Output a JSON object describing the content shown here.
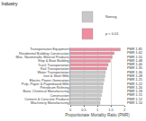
{
  "chart_data": {
    "type": "bar",
    "orientation": "horizontal",
    "title": "Industry",
    "x_label": "Proportionate Mortality Ratio (PMR)",
    "categories": [
      "Transportation Equipment",
      "Residential Building Construction",
      "Misc. Nonmetallic Mineral Products",
      "Ship & Boat Building",
      "Truck Transportation",
      "Rail Transportation",
      "Water Transportation",
      "Iron & Steel Mills",
      "Electric Power Generation",
      "Pulp, Paper & Paperboard Mills",
      "Petroleum Refining",
      "Basic Chemical Manufacturing",
      "Construction",
      "Cement & Concrete Products",
      "Machinery Manufacturing"
    ],
    "series": [
      {
        "name": "Nonsig",
        "color": "#c8c8c8",
        "values": [
          null,
          null,
          null,
          null,
          null,
          null,
          1.3,
          1.28,
          1.25,
          1.22,
          1.2,
          1.18,
          1.15,
          1.12,
          1.1
        ],
        "value_labels": [
          null,
          null,
          null,
          null,
          null,
          null,
          "PMR 1.30",
          "PMR 1.28",
          "PMR 1.25",
          "PMR 1.22",
          "PMR 1.20",
          "PMR 1.18",
          "PMR 1.15",
          "PMR 1.12",
          "PMR 1.10"
        ]
      },
      {
        "name": "p < 0.01",
        "color": "#ee8ea0",
        "values": [
          1.85,
          1.62,
          1.55,
          1.48,
          1.4,
          1.35,
          null,
          null,
          null,
          null,
          null,
          null,
          null,
          null,
          null
        ],
        "value_labels": [
          "PMR 1.85",
          "PMR 1.62",
          "PMR 1.55",
          "PMR 1.48",
          "PMR 1.40",
          "PMR 1.35",
          null,
          null,
          null,
          null,
          null,
          null,
          null,
          null,
          null
        ]
      }
    ],
    "xlim": [
      0,
      2
    ],
    "xticks": [
      0,
      0.5,
      1,
      1.5,
      2
    ],
    "grid": true,
    "legend": "top right",
    "data_labels": true
  }
}
